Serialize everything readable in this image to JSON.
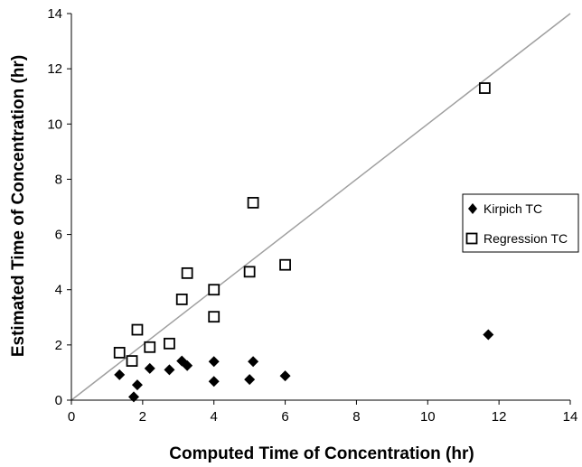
{
  "chart_data": {
    "type": "scatter",
    "xlabel": "Computed Time of Concentration (hr)",
    "ylabel": "Estimated Time of Concentration (hr)",
    "xlim": [
      0,
      14
    ],
    "ylim": [
      0,
      14
    ],
    "xticks": [
      "0",
      "2",
      "4",
      "6",
      "8",
      "10",
      "12",
      "14"
    ],
    "yticks": [
      "0",
      "2",
      "4",
      "6",
      "8",
      "10",
      "12",
      "14"
    ],
    "grid": false,
    "legend_position": "right",
    "reference_line": {
      "from": [
        0,
        0
      ],
      "to": [
        14,
        14
      ],
      "color": "#a0a0a0"
    },
    "series": [
      {
        "name": "Kirpich TC",
        "marker": "diamond-filled",
        "color": "#000000",
        "points": [
          [
            1.35,
            0.92
          ],
          [
            1.75,
            0.12
          ],
          [
            1.85,
            0.55
          ],
          [
            2.2,
            1.15
          ],
          [
            2.75,
            1.1
          ],
          [
            3.1,
            1.42
          ],
          [
            3.25,
            1.25
          ],
          [
            4.0,
            1.4
          ],
          [
            4.0,
            0.68
          ],
          [
            5.0,
            0.75
          ],
          [
            5.1,
            1.4
          ],
          [
            6.0,
            0.88
          ],
          [
            11.7,
            2.37
          ]
        ]
      },
      {
        "name": "Regression TC",
        "marker": "square-open",
        "color": "#000000",
        "points": [
          [
            1.35,
            1.72
          ],
          [
            1.7,
            1.42
          ],
          [
            1.85,
            2.55
          ],
          [
            2.2,
            1.92
          ],
          [
            2.75,
            2.05
          ],
          [
            3.1,
            3.65
          ],
          [
            3.25,
            4.6
          ],
          [
            4.0,
            4.0
          ],
          [
            4.0,
            3.02
          ],
          [
            5.0,
            4.65
          ],
          [
            5.1,
            7.15
          ],
          [
            6.0,
            4.9
          ],
          [
            11.6,
            11.3
          ]
        ]
      }
    ]
  }
}
